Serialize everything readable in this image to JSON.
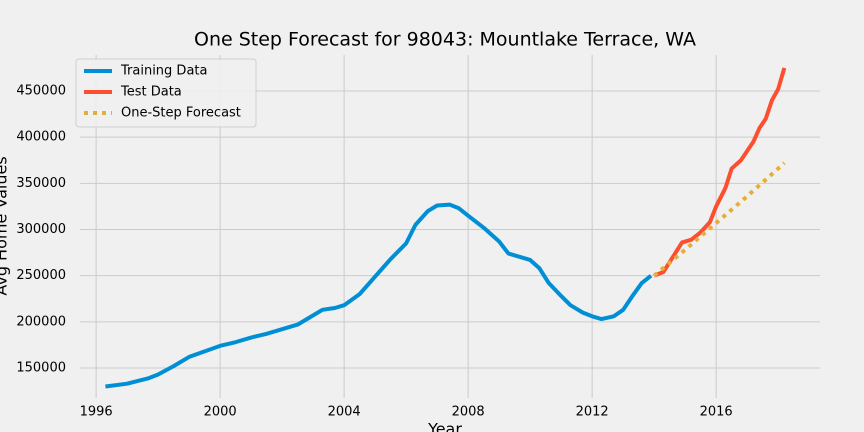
{
  "chart_data": {
    "type": "line",
    "title": "One Step Forecast for 98043: Mountlake Terrace, WA",
    "xlabel": "Year",
    "ylabel": "Avg Home Values",
    "xlim": [
      1995.48,
      2019.35
    ],
    "ylim": [
      117500,
      489000
    ],
    "xticks": [
      1996,
      2000,
      2004,
      2008,
      2012,
      2016
    ],
    "yticks": [
      150000,
      200000,
      250000,
      300000,
      350000,
      400000,
      450000
    ],
    "grid": true,
    "legend": "upper left",
    "series": [
      {
        "name": "Training Data",
        "color": "#008fd5",
        "style": "solid",
        "x": [
          1996.3,
          1997,
          1997.7,
          1998,
          1998.5,
          1999,
          1999.5,
          2000,
          2000.5,
          2001,
          2001.5,
          2002,
          2002.5,
          2003,
          2003.3,
          2003.7,
          2004,
          2004.5,
          2005,
          2005.5,
          2006,
          2006.3,
          2006.7,
          2007,
          2007.4,
          2007.7,
          2008,
          2008.5,
          2009,
          2009.3,
          2009.7,
          2010,
          2010.3,
          2010.6,
          2011,
          2011.3,
          2011.7,
          2012,
          2012.3,
          2012.7,
          2013,
          2013.3,
          2013.6,
          2013.9
        ],
        "values": [
          130000,
          133000,
          139000,
          143000,
          152000,
          162000,
          168000,
          174000,
          178000,
          183000,
          187000,
          192000,
          197000,
          207000,
          213000,
          215000,
          218000,
          230000,
          249000,
          268000,
          285000,
          305000,
          320000,
          326000,
          327000,
          323000,
          315000,
          302000,
          287000,
          274000,
          270000,
          267000,
          258000,
          242000,
          228000,
          218000,
          210000,
          206000,
          203000,
          206000,
          213000,
          228000,
          242000,
          250000
        ]
      },
      {
        "name": "Test Data",
        "color": "#fc4f30",
        "style": "solid",
        "x": [
          2014.0,
          2014.3,
          2014.6,
          2014.9,
          2015.2,
          2015.5,
          2015.8,
          2016,
          2016.3,
          2016.5,
          2016.8,
          2017,
          2017.2,
          2017.4,
          2017.6,
          2017.8,
          2018,
          2018.2
        ],
        "values": [
          250000,
          254000,
          270000,
          286000,
          289000,
          297000,
          308000,
          325000,
          345000,
          366000,
          375000,
          385000,
          395000,
          410000,
          420000,
          440000,
          452000,
          475000
        ]
      },
      {
        "name": "One-Step Forecast",
        "color": "#e5ae38",
        "style": "dotted",
        "x": [
          2014.0,
          2015,
          2016,
          2017,
          2018.2
        ],
        "values": [
          250000,
          278000,
          307000,
          336000,
          372000
        ]
      }
    ]
  }
}
